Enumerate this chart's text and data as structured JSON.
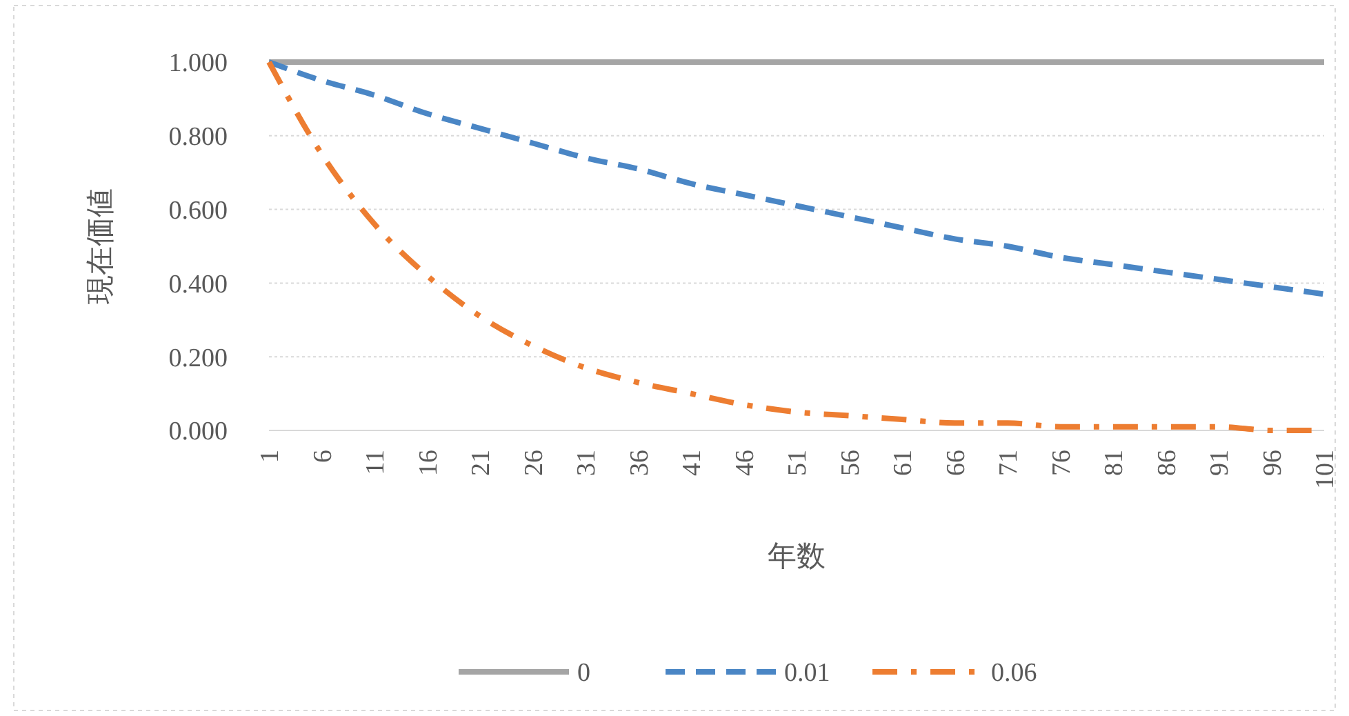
{
  "chart_data": {
    "type": "line",
    "xlabel": "年数",
    "ylabel": "現在価値",
    "xlim": [
      1,
      101
    ],
    "xticks": [
      1,
      6,
      11,
      16,
      21,
      26,
      31,
      36,
      41,
      46,
      51,
      56,
      61,
      66,
      71,
      76,
      81,
      86,
      91,
      96,
      101
    ],
    "ylim": [
      0,
      1
    ],
    "yticks": [
      {
        "value": 0,
        "label": "0.000"
      },
      {
        "value": 0.2,
        "label": "0.200"
      },
      {
        "value": 0.4,
        "label": "0.400"
      },
      {
        "value": 0.6,
        "label": "0.600"
      },
      {
        "value": 0.8,
        "label": "0.800"
      },
      {
        "value": 1,
        "label": "1.000"
      }
    ],
    "grid": "y",
    "legend": "bottom",
    "marker": "none",
    "x": [
      1,
      6,
      11,
      16,
      21,
      26,
      31,
      36,
      41,
      46,
      51,
      56,
      61,
      66,
      71,
      76,
      81,
      86,
      91,
      96,
      101
    ],
    "series": [
      {
        "name": "0",
        "color": "#a5a5a5",
        "line_style": "solid",
        "values": [
          1,
          1,
          1,
          1,
          1,
          1,
          1,
          1,
          1,
          1,
          1,
          1,
          1,
          1,
          1,
          1,
          1,
          1,
          1,
          1,
          1
        ]
      },
      {
        "name": "0.01",
        "color": "#4a86c5",
        "line_style": "dashed",
        "values": [
          1,
          0.95,
          0.91,
          0.86,
          0.82,
          0.78,
          0.74,
          0.71,
          0.67,
          0.64,
          0.61,
          0.58,
          0.55,
          0.52,
          0.5,
          0.47,
          0.45,
          0.43,
          0.41,
          0.39,
          0.37
        ]
      },
      {
        "name": "0.06",
        "color": "#ed7d31",
        "line_style": "dashdot",
        "values": [
          1,
          0.75,
          0.56,
          0.42,
          0.31,
          0.23,
          0.17,
          0.13,
          0.1,
          0.07,
          0.05,
          0.04,
          0.03,
          0.02,
          0.02,
          0.01,
          0.01,
          0.01,
          0.01,
          0,
          0
        ]
      }
    ]
  }
}
